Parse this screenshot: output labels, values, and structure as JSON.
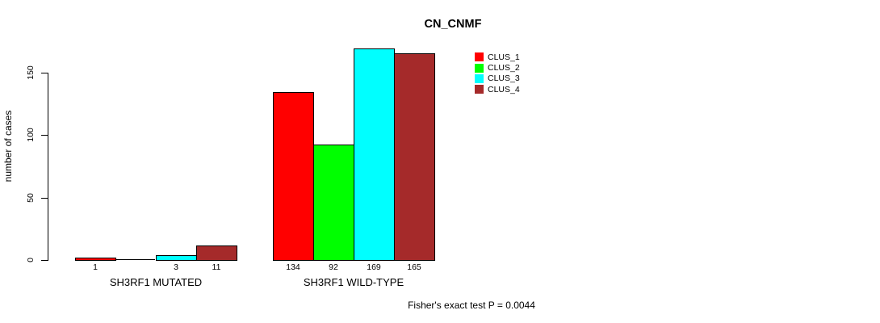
{
  "title": "CN_CNMF",
  "footer": {
    "text": "Fisher's exact test P = 0.0044"
  },
  "chart_data": {
    "type": "bar",
    "title": "CN_CNMF",
    "ylabel": "number of cases",
    "xlabel": "",
    "yticks": [
      0,
      50,
      100,
      150
    ],
    "ylim": [
      0,
      175
    ],
    "grid": false,
    "legend_position": "top-right",
    "groups": [
      {
        "label": "SH3RF1 MUTATED",
        "values": [
          1,
          0,
          3,
          11
        ],
        "value_labels": [
          "1",
          "",
          "3",
          "11"
        ]
      },
      {
        "label": "SH3RF1 WILD-TYPE",
        "values": [
          134,
          92,
          169,
          165
        ],
        "value_labels": [
          "134",
          "92",
          "169",
          "165"
        ]
      }
    ],
    "series": [
      {
        "name": "CLUS_1",
        "color": "#ff0000"
      },
      {
        "name": "CLUS_2",
        "color": "#00ff00"
      },
      {
        "name": "CLUS_3",
        "color": "#00ffff"
      },
      {
        "name": "CLUS_4",
        "color": "#a52a2a"
      }
    ],
    "annotation": "Fisher's exact test P = 0.0044"
  }
}
